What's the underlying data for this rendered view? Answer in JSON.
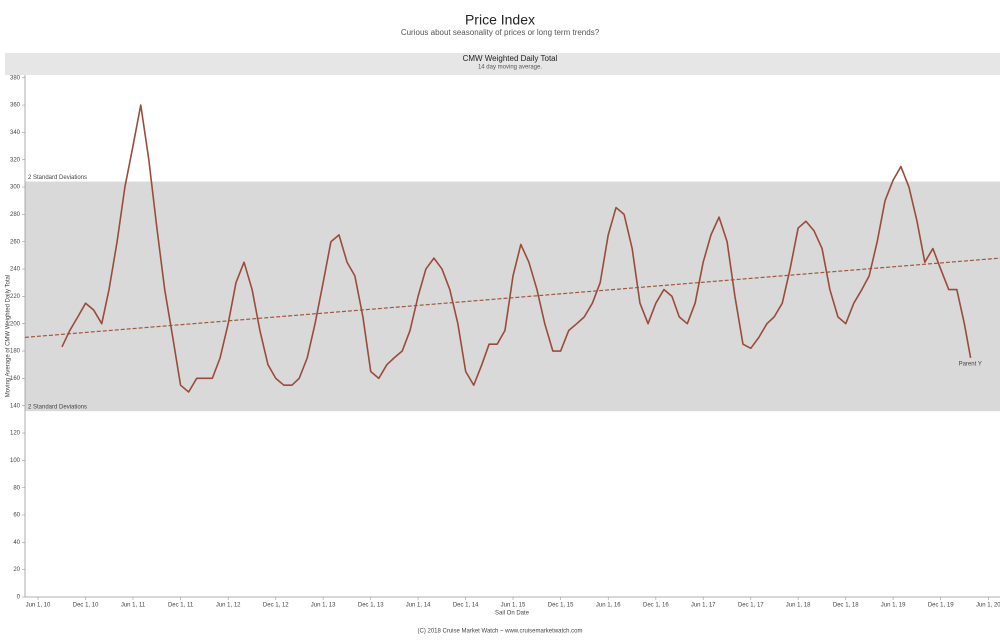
{
  "chart_data": {
    "type": "line",
    "title": "Price Index",
    "subtitle": "Curious about seasonality of prices or long term trends?",
    "panel_title": "CMW Weighted Daily Total",
    "panel_subtitle": "14 day moving average.",
    "y_label": "Moving Average of CMW Weighted Daily Total",
    "x_label": "Sail On Date",
    "footer": "(C) 2018 Cruise Market Watch  ~ www.cruisemarketwatch.com",
    "xlim": [
      "2010-04-12",
      "2020-07-16"
    ],
    "ylim": [
      0,
      382
    ],
    "yticks": [
      0,
      20,
      40,
      60,
      80,
      100,
      120,
      140,
      160,
      180,
      200,
      220,
      240,
      260,
      280,
      300,
      320,
      340,
      360,
      380
    ],
    "xticks": [
      {
        "value": "2010-06-01",
        "label": "Jun 1, 10"
      },
      {
        "value": "2010-12-01",
        "label": "Dec 1, 10"
      },
      {
        "value": "2011-06-01",
        "label": "Jun 1, 11"
      },
      {
        "value": "2011-12-01",
        "label": "Dec 1, 11"
      },
      {
        "value": "2012-06-01",
        "label": "Jun 1, 12"
      },
      {
        "value": "2012-12-01",
        "label": "Dec 1, 12"
      },
      {
        "value": "2013-06-01",
        "label": "Jun 1, 13"
      },
      {
        "value": "2013-12-01",
        "label": "Dec 1, 13"
      },
      {
        "value": "2014-06-01",
        "label": "Jun 1, 14"
      },
      {
        "value": "2014-12-01",
        "label": "Dec 1, 14"
      },
      {
        "value": "2015-06-01",
        "label": "Jun 1, 15"
      },
      {
        "value": "2015-12-01",
        "label": "Dec 1, 15"
      },
      {
        "value": "2016-06-01",
        "label": "Jun 1, 16"
      },
      {
        "value": "2016-12-01",
        "label": "Dec 1, 16"
      },
      {
        "value": "2017-06-01",
        "label": "Jun 1, 17"
      },
      {
        "value": "2017-12-01",
        "label": "Dec 1, 17"
      },
      {
        "value": "2018-06-01",
        "label": "Jun 1, 18"
      },
      {
        "value": "2018-12-01",
        "label": "Dec 1, 18"
      },
      {
        "value": "2019-06-01",
        "label": "Jun 1, 19"
      },
      {
        "value": "2019-12-01",
        "label": "Dec 1, 19"
      },
      {
        "value": "2020-06-01",
        "label": "Jun 1, 20"
      }
    ],
    "band": {
      "values": [
        136,
        304
      ],
      "labels": [
        "2 Standard Deviations",
        "2 Standard Deviations"
      ],
      "color": "#d9d9d9"
    },
    "trend": {
      "x": [
        "2010-04-12",
        "2020-07-16"
      ],
      "values": [
        190,
        248
      ],
      "color": "#a0583f"
    },
    "x": [
      "2010-09-01",
      "2010-10-01",
      "2010-11-01",
      "2010-12-01",
      "2011-01-01",
      "2011-02-01",
      "2011-03-01",
      "2011-04-01",
      "2011-05-01",
      "2011-06-01",
      "2011-07-01",
      "2011-08-01",
      "2011-09-01",
      "2011-10-01",
      "2011-11-01",
      "2011-12-01",
      "2012-01-01",
      "2012-02-01",
      "2012-03-01",
      "2012-04-01",
      "2012-05-01",
      "2012-06-01",
      "2012-07-01",
      "2012-08-01",
      "2012-09-01",
      "2012-10-01",
      "2012-11-01",
      "2012-12-01",
      "2013-01-01",
      "2013-02-01",
      "2013-03-01",
      "2013-04-01",
      "2013-05-01",
      "2013-06-01",
      "2013-07-01",
      "2013-08-01",
      "2013-09-01",
      "2013-10-01",
      "2013-11-01",
      "2013-12-01",
      "2014-01-01",
      "2014-02-01",
      "2014-03-01",
      "2014-04-01",
      "2014-05-01",
      "2014-06-01",
      "2014-07-01",
      "2014-08-01",
      "2014-09-01",
      "2014-10-01",
      "2014-11-01",
      "2014-12-01",
      "2015-01-01",
      "2015-02-01",
      "2015-03-01",
      "2015-04-01",
      "2015-05-01",
      "2015-06-01",
      "2015-07-01",
      "2015-08-01",
      "2015-09-01",
      "2015-10-01",
      "2015-11-01",
      "2015-12-01",
      "2016-01-01",
      "2016-02-01",
      "2016-03-01",
      "2016-04-01",
      "2016-05-01",
      "2016-06-01",
      "2016-07-01",
      "2016-08-01",
      "2016-09-01",
      "2016-10-01",
      "2016-11-01",
      "2016-12-01",
      "2017-01-01",
      "2017-02-01",
      "2017-03-01",
      "2017-04-01",
      "2017-05-01",
      "2017-06-01",
      "2017-07-01",
      "2017-08-01",
      "2017-09-01",
      "2017-10-01",
      "2017-11-01",
      "2017-12-01",
      "2018-01-01",
      "2018-02-01",
      "2018-03-01",
      "2018-04-01",
      "2018-05-01",
      "2018-06-01",
      "2018-07-01",
      "2018-08-01",
      "2018-09-01",
      "2018-10-01",
      "2018-11-01",
      "2018-12-01",
      "2019-01-01",
      "2019-02-01",
      "2019-03-01",
      "2019-04-01",
      "2019-05-01",
      "2019-06-01",
      "2019-07-01",
      "2019-08-01",
      "2019-09-01",
      "2019-10-01",
      "2019-11-01",
      "2019-12-01",
      "2020-01-01",
      "2020-02-01",
      "2020-03-01",
      "2020-03-25"
    ],
    "series": [
      {
        "name": "Parent Y",
        "color": "#9a4c3b",
        "values": [
          183,
          195,
          205,
          215,
          210,
          200,
          225,
          260,
          300,
          330,
          360,
          320,
          270,
          225,
          190,
          155,
          150,
          160,
          160,
          160,
          175,
          200,
          230,
          245,
          225,
          195,
          170,
          160,
          155,
          155,
          160,
          175,
          200,
          230,
          260,
          265,
          245,
          235,
          205,
          165,
          160,
          170,
          175,
          180,
          195,
          220,
          240,
          248,
          240,
          225,
          200,
          165,
          155,
          170,
          185,
          185,
          195,
          235,
          258,
          245,
          225,
          200,
          180,
          180,
          195,
          200,
          205,
          215,
          230,
          265,
          285,
          280,
          255,
          215,
          200,
          215,
          225,
          220,
          205,
          200,
          215,
          245,
          265,
          278,
          260,
          220,
          185,
          182,
          190,
          200,
          205,
          215,
          240,
          270,
          275,
          268,
          255,
          225,
          205,
          200,
          215,
          225,
          235,
          260,
          290,
          305,
          315,
          300,
          275,
          245,
          255,
          240,
          225,
          225,
          200,
          175
        ]
      }
    ]
  }
}
